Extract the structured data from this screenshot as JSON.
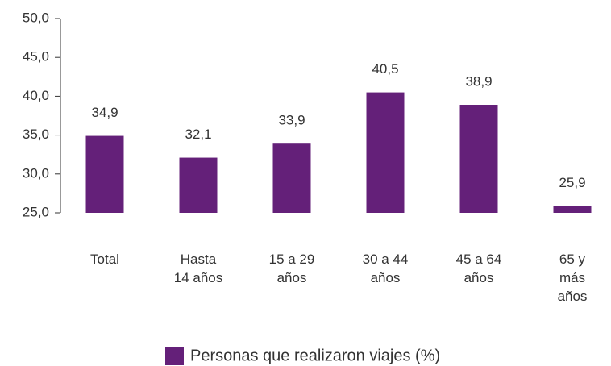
{
  "chart_data": {
    "type": "bar",
    "categories": [
      "Total",
      "Hasta\n14 años",
      "15 a 29\naños",
      "30 a 44\naños",
      "45 a 64\naños",
      "65 y\nmás\naños"
    ],
    "series": [
      {
        "name": "Personas que realizaron viajes (%)",
        "color": "#642079",
        "values": [
          34.9,
          32.1,
          33.9,
          40.5,
          38.9,
          25.9
        ],
        "value_labels": [
          "34,9",
          "32,1",
          "33,9",
          "40,5",
          "38,9",
          "25,9"
        ]
      }
    ],
    "ylim": [
      25,
      50
    ],
    "yticks": [
      {
        "value": 25,
        "label": "25,0"
      },
      {
        "value": 30,
        "label": "30,0"
      },
      {
        "value": 35,
        "label": "35,0"
      },
      {
        "value": 40,
        "label": "40,0"
      },
      {
        "value": 45,
        "label": "45,0"
      },
      {
        "value": 50,
        "label": "50,0"
      }
    ],
    "legend": "bottom"
  }
}
